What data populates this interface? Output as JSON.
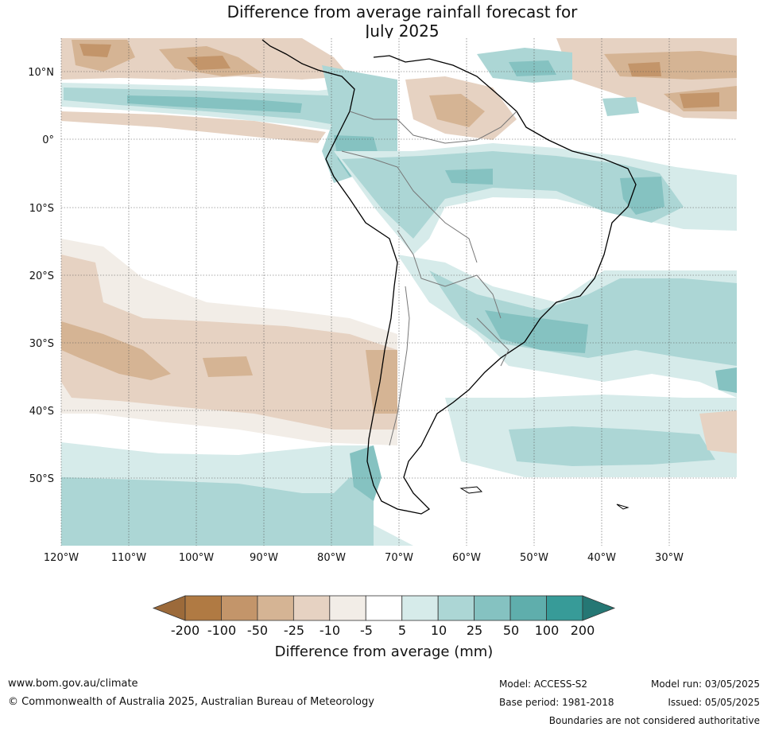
{
  "title_line1": "Difference from average rainfall forecast for",
  "title_line2": "July 2025",
  "lat_labels": [
    "10°N",
    "0°",
    "10°S",
    "20°S",
    "30°S",
    "40°S",
    "50°S"
  ],
  "lon_labels": [
    "120°W",
    "110°W",
    "100°W",
    "90°W",
    "80°W",
    "70°W",
    "60°W",
    "50°W",
    "40°W",
    "30°W"
  ],
  "colorbar": {
    "title": "Difference from average (mm)",
    "tick_labels": [
      "-200",
      "-100",
      "-50",
      "-25",
      "-10",
      "-5",
      "5",
      "10",
      "25",
      "50",
      "100",
      "200"
    ],
    "colors": [
      "#9c6a3a",
      "#b07a43",
      "#c3956a",
      "#d5b494",
      "#e6d2c2",
      "#f2ede7",
      "#ffffff",
      "#d6ebea",
      "#acd6d5",
      "#85c2c1",
      "#5faeac",
      "#379b98",
      "#257774"
    ]
  },
  "footer": {
    "website": "www.bom.gov.au/climate",
    "copyright": "© Commonwealth of Australia 2025, Australian Bureau of Meteorology",
    "model": "Model: ACCESS-S2",
    "base_period": "Base period: 1981-2018",
    "model_run": "Model run: 03/05/2025",
    "issued": "Issued: 05/05/2025",
    "disclaimer": "Boundaries are not considered authoritative"
  }
}
